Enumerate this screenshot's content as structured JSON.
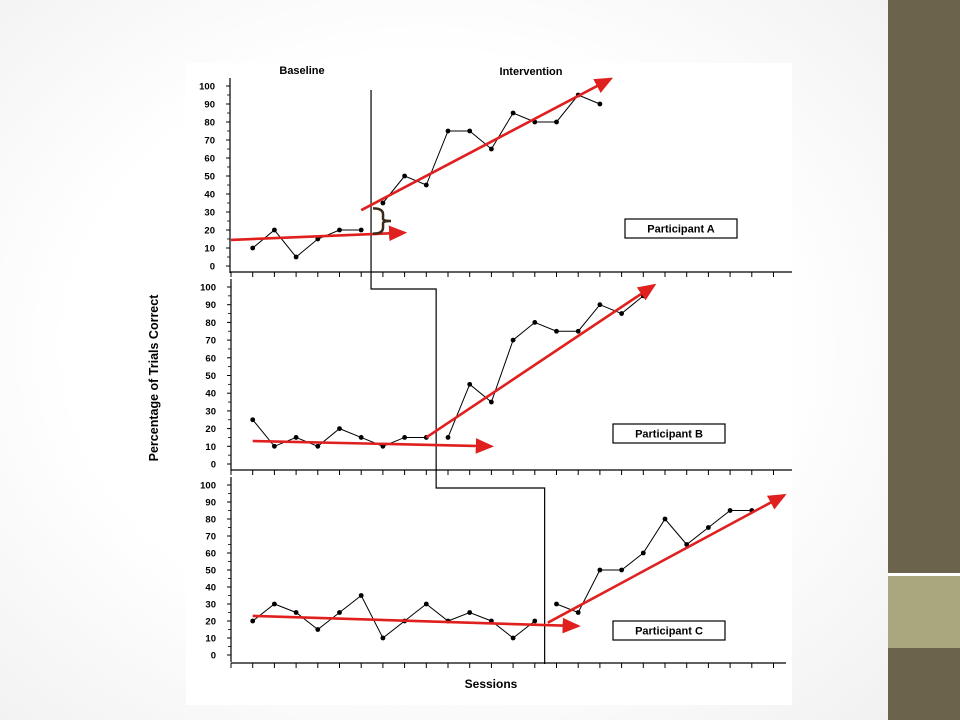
{
  "chart_data": {
    "type": "line",
    "design": "multiple-baseline",
    "ylabel": "Percentage of Trials Correct",
    "xlabel": "Sessions",
    "phase_labels": [
      "Baseline",
      "Intervention"
    ],
    "ylim": [
      0,
      100
    ],
    "yticks": [
      0,
      10,
      20,
      30,
      40,
      50,
      60,
      70,
      80,
      90,
      100
    ],
    "sessions": 24,
    "grid": false,
    "line_color": "#000000",
    "trend_color": "#e01f1f",
    "panels": [
      {
        "participant": "Participant A",
        "phase_change_after_session": 6,
        "data": [
          [
            1,
            10
          ],
          [
            2,
            20
          ],
          [
            3,
            5
          ],
          [
            4,
            15
          ],
          [
            5,
            20
          ],
          [
            6,
            20
          ],
          [
            7,
            35
          ],
          [
            8,
            50
          ],
          [
            9,
            45
          ],
          [
            10,
            75
          ],
          [
            11,
            75
          ],
          [
            12,
            65
          ],
          [
            13,
            85
          ],
          [
            14,
            80
          ],
          [
            15,
            80
          ],
          [
            16,
            95
          ],
          [
            17,
            90
          ]
        ],
        "trend_baseline": [
          [
            0,
            14.5
          ],
          [
            8,
            18.5
          ]
        ],
        "trend_intervention": [
          [
            6,
            31
          ],
          [
            17.5,
            104
          ]
        ]
      },
      {
        "participant": "Participant B",
        "phase_change_after_session": 9,
        "data": [
          [
            1,
            25
          ],
          [
            2,
            10
          ],
          [
            3,
            15
          ],
          [
            4,
            10
          ],
          [
            5,
            20
          ],
          [
            6,
            15
          ],
          [
            7,
            10
          ],
          [
            8,
            15
          ],
          [
            9,
            15
          ],
          [
            10,
            15
          ],
          [
            11,
            45
          ],
          [
            12,
            35
          ],
          [
            13,
            70
          ],
          [
            14,
            80
          ],
          [
            15,
            75
          ],
          [
            16,
            75
          ],
          [
            17,
            90
          ],
          [
            18,
            85
          ],
          [
            19,
            95
          ]
        ],
        "trend_baseline": [
          [
            1,
            13
          ],
          [
            12,
            10
          ]
        ],
        "trend_intervention": [
          [
            9,
            15
          ],
          [
            19.5,
            101
          ]
        ]
      },
      {
        "participant": "Participant C",
        "phase_change_after_session": 14,
        "data": [
          [
            1,
            20
          ],
          [
            2,
            30
          ],
          [
            3,
            25
          ],
          [
            4,
            15
          ],
          [
            5,
            25
          ],
          [
            6,
            35
          ],
          [
            7,
            10
          ],
          [
            8,
            20
          ],
          [
            9,
            30
          ],
          [
            10,
            20
          ],
          [
            11,
            25
          ],
          [
            12,
            20
          ],
          [
            13,
            10
          ],
          [
            14,
            20
          ],
          [
            15,
            30
          ],
          [
            16,
            25
          ],
          [
            17,
            50
          ],
          [
            18,
            50
          ],
          [
            19,
            60
          ],
          [
            20,
            80
          ],
          [
            21,
            65
          ],
          [
            22,
            75
          ],
          [
            23,
            85
          ],
          [
            24,
            85
          ]
        ],
        "trend_baseline": [
          [
            1,
            23
          ],
          [
            16,
            17
          ]
        ],
        "trend_intervention": [
          [
            14.6,
            19
          ],
          [
            25.5,
            94
          ]
        ]
      }
    ]
  }
}
